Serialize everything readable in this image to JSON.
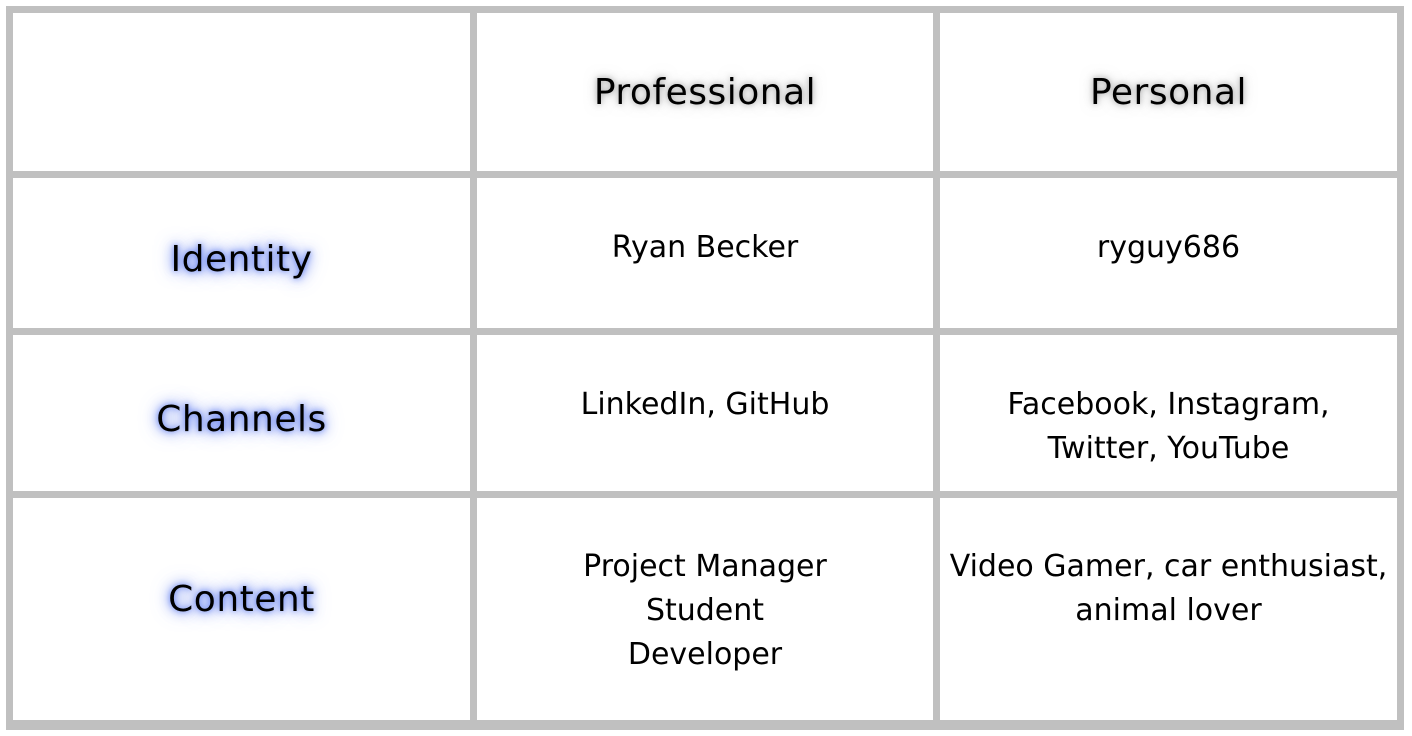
{
  "table": {
    "columns": [
      "",
      "Professional",
      "Personal"
    ],
    "rows": [
      {
        "label": "Identity",
        "professional": "Ryan Becker",
        "personal": "ryguy686"
      },
      {
        "label": "Channels",
        "professional": "LinkedIn, GitHub",
        "personal": "Facebook, Instagram,\nTwitter, YouTube"
      },
      {
        "label": "Content",
        "professional": "Project Manager\nStudent\nDeveloper",
        "personal": "Video Gamer, car enthusiast,\nanimal lover"
      }
    ]
  },
  "colors": {
    "grid_border": "#c0c0c0",
    "row_label_glow": "#5a78f0",
    "header_glow": "#969696"
  }
}
